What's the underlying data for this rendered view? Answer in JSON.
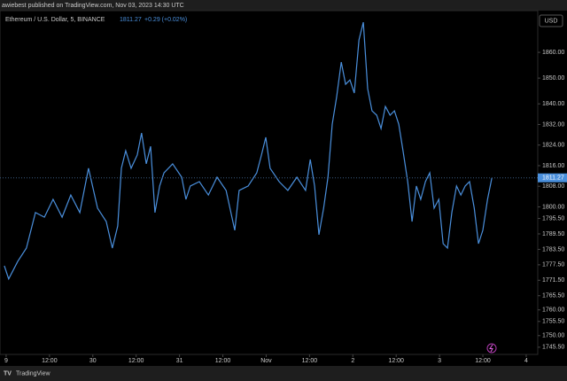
{
  "header": {
    "publisher": "awiebest published on TradingView.com, Nov 03, 2023 14:30 UTC"
  },
  "chart_data": {
    "type": "line",
    "title": "Ethereum / U.S. Dollar, 5, BINANCE",
    "last_price": 1811.27,
    "change": "+0.29 (+0.02%)",
    "currency": "USD",
    "color": "#4a8fdc",
    "x": [
      -0.5,
      0.7,
      3.2,
      5.6,
      8.1,
      10.6,
      13.0,
      15.5,
      17.9,
      20.4,
      22.8,
      25.3,
      27.7,
      29.4,
      30.9,
      31.9,
      33.1,
      34.6,
      36.3,
      37.5,
      38.8,
      40.0,
      41.2,
      42.5,
      43.7,
      46.1,
      48.6,
      49.8,
      51.0,
      53.5,
      56.0,
      58.4,
      60.9,
      63.3,
      64.5,
      67.0,
      69.4,
      70.7,
      71.9,
      73.1,
      75.6,
      78.0,
      80.5,
      82.9,
      84.2,
      85.4,
      86.6,
      87.9,
      89.1,
      90.3,
      91.5,
      92.8,
      94.0,
      95.2,
      96.4,
      97.7,
      98.9,
      100.1,
      101.3,
      102.6,
      103.8,
      105.0,
      106.3,
      107.5,
      108.7,
      109.9,
      111.2,
      112.4,
      113.6,
      114.8,
      116.1,
      117.3,
      118.5,
      119.8,
      121.0,
      122.2,
      123.4,
      124.7,
      125.9,
      127.1,
      128.3,
      129.6,
      130.8,
      132.0,
      133.3,
      134.5
    ],
    "values": [
      1777.1,
      1772.0,
      1778.8,
      1784.0,
      1797.8,
      1796.0,
      1802.9,
      1796.0,
      1804.6,
      1797.8,
      1815.0,
      1799.5,
      1794.3,
      1784.0,
      1792.6,
      1815.0,
      1821.8,
      1815.0,
      1820.1,
      1828.7,
      1816.7,
      1823.5,
      1797.8,
      1808.1,
      1813.2,
      1816.7,
      1811.5,
      1802.9,
      1808.1,
      1809.8,
      1804.6,
      1811.5,
      1806.4,
      1790.9,
      1806.4,
      1808.1,
      1813.2,
      1820.1,
      1827.0,
      1815.0,
      1809.8,
      1806.4,
      1811.5,
      1806.4,
      1818.4,
      1808.1,
      1789.2,
      1799.5,
      1811.5,
      1832.1,
      1842.5,
      1856.2,
      1847.6,
      1849.3,
      1844.2,
      1864.8,
      1871.7,
      1845.9,
      1837.3,
      1835.6,
      1830.4,
      1839.0,
      1835.6,
      1837.3,
      1832.1,
      1821.8,
      1809.8,
      1794.3,
      1808.1,
      1802.9,
      1809.8,
      1813.2,
      1799.5,
      1802.9,
      1785.7,
      1784.0,
      1797.8,
      1808.1,
      1804.6,
      1808.1,
      1809.8,
      1799.5,
      1785.7,
      1790.9,
      1802.9,
      1811.27
    ],
    "xlim": [
      -1.7,
      147.2
    ],
    "ylim": [
      1742.7,
      1876.2
    ],
    "xticks": [
      {
        "value": 0,
        "label": "9"
      },
      {
        "value": 12,
        "label": "12:00"
      },
      {
        "value": 24,
        "label": "30"
      },
      {
        "value": 36,
        "label": "12:00"
      },
      {
        "value": 48,
        "label": "31"
      },
      {
        "value": 60,
        "label": "12:00"
      },
      {
        "value": 72,
        "label": "Nov"
      },
      {
        "value": 84,
        "label": "12:00"
      },
      {
        "value": 96,
        "label": "2"
      },
      {
        "value": 108,
        "label": "12:00"
      },
      {
        "value": 120,
        "label": "3"
      },
      {
        "value": 132,
        "label": "12:00"
      },
      {
        "value": 144,
        "label": "4"
      }
    ],
    "yticks": [
      {
        "value": 1860,
        "label": "1860.00"
      },
      {
        "value": 1850,
        "label": "1850.00"
      },
      {
        "value": 1840,
        "label": "1840.00"
      },
      {
        "value": 1832,
        "label": "1832.00"
      },
      {
        "value": 1824,
        "label": "1824.00"
      },
      {
        "value": 1816,
        "label": "1816.00"
      },
      {
        "value": 1808,
        "label": "1808.00"
      },
      {
        "value": 1800,
        "label": "1800.00"
      },
      {
        "value": 1795.5,
        "label": "1795.50"
      },
      {
        "value": 1789.5,
        "label": "1789.50"
      },
      {
        "value": 1783.5,
        "label": "1783.50"
      },
      {
        "value": 1777.5,
        "label": "1777.50"
      },
      {
        "value": 1771.5,
        "label": "1771.50"
      },
      {
        "value": 1765.5,
        "label": "1765.50"
      },
      {
        "value": 1760,
        "label": "1760.00"
      },
      {
        "value": 1755.5,
        "label": "1755.50"
      },
      {
        "value": 1750,
        "label": "1750.00"
      },
      {
        "value": 1745.5,
        "label": "1745.50"
      }
    ]
  },
  "footer": {
    "brand": "TradingView"
  }
}
